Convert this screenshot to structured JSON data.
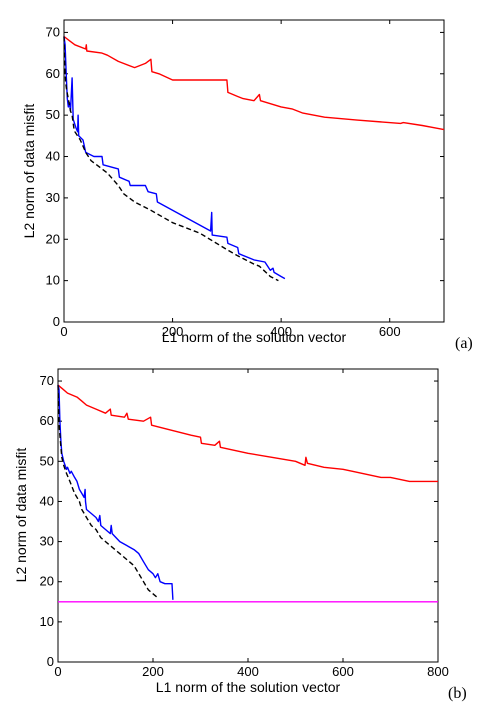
{
  "chart_data": [
    {
      "type": "line",
      "panel_label": "(a)",
      "xlabel": "L1 norm of the solution vector",
      "ylabel": "L2 norm of data misfit",
      "xlim": [
        0,
        700
      ],
      "ylim": [
        0,
        73
      ],
      "x_ticks": [
        0,
        200,
        400,
        600
      ],
      "y_ticks": [
        0,
        10,
        20,
        30,
        40,
        50,
        60,
        70
      ],
      "colors": {
        "red": "#ff0000",
        "blue": "#0000ff",
        "black": "#000000",
        "magenta": "#ff00ff"
      },
      "series": [
        {
          "color": "red",
          "style": "solid",
          "points": [
            [
              0,
              69
            ],
            [
              10,
              68
            ],
            [
              20,
              67
            ],
            [
              40,
              66
            ],
            [
              41,
              67
            ],
            [
              42,
              65.5
            ],
            [
              70,
              65
            ],
            [
              80,
              64.5
            ],
            [
              100,
              63
            ],
            [
              130,
              61.5
            ],
            [
              150,
              62.5
            ],
            [
              160,
              63.5
            ],
            [
              162,
              60.5
            ],
            [
              175,
              60
            ],
            [
              200,
              58.5
            ],
            [
              260,
              58.5
            ],
            [
              300,
              58.5
            ],
            [
              302,
              55.5
            ],
            [
              320,
              54.5
            ],
            [
              330,
              54
            ],
            [
              350,
              53.5
            ],
            [
              360,
              55
            ],
            [
              362,
              53.5
            ],
            [
              400,
              52
            ],
            [
              420,
              51.5
            ],
            [
              440,
              50.5
            ],
            [
              480,
              49.5
            ],
            [
              540,
              48.8
            ],
            [
              620,
              48
            ],
            [
              625,
              48.2
            ],
            [
              660,
              47.5
            ],
            [
              700,
              46.5
            ]
          ]
        },
        {
          "color": "blue",
          "style": "solid",
          "points": [
            [
              0,
              69
            ],
            [
              2,
              67
            ],
            [
              4,
              60
            ],
            [
              6,
              54
            ],
            [
              8,
              52
            ],
            [
              10,
              53
            ],
            [
              12,
              51
            ],
            [
              15,
              59
            ],
            [
              17,
              49
            ],
            [
              22,
              47
            ],
            [
              25,
              46
            ],
            [
              26,
              50
            ],
            [
              27,
              45
            ],
            [
              35,
              44
            ],
            [
              40,
              41
            ],
            [
              55,
              40
            ],
            [
              70,
              40
            ],
            [
              72,
              38
            ],
            [
              100,
              37
            ],
            [
              102,
              35
            ],
            [
              120,
              34
            ],
            [
              122,
              33
            ],
            [
              150,
              33
            ],
            [
              155,
              31.5
            ],
            [
              170,
              31
            ],
            [
              172,
              29
            ],
            [
              270,
              22
            ],
            [
              272,
              26.5
            ],
            [
              273,
              21
            ],
            [
              300,
              20.5
            ],
            [
              302,
              19
            ],
            [
              320,
              18
            ],
            [
              322,
              16.5
            ],
            [
              350,
              15
            ],
            [
              370,
              14.5
            ],
            [
              380,
              12.5
            ],
            [
              385,
              13
            ],
            [
              387,
              12
            ],
            [
              400,
              11
            ],
            [
              407,
              10.5
            ]
          ]
        },
        {
          "color": "black",
          "style": "dashed",
          "points": [
            [
              0,
              69
            ],
            [
              1,
              64
            ],
            [
              3,
              58
            ],
            [
              5,
              56
            ],
            [
              8,
              54
            ],
            [
              12,
              51
            ],
            [
              15,
              50
            ],
            [
              18,
              47
            ],
            [
              20,
              46
            ],
            [
              30,
              44
            ],
            [
              40,
              41
            ],
            [
              50,
              39
            ],
            [
              60,
              38
            ],
            [
              80,
              36
            ],
            [
              100,
              33
            ],
            [
              110,
              31
            ],
            [
              130,
              29
            ],
            [
              160,
              27
            ],
            [
              200,
              24
            ],
            [
              220,
              23
            ],
            [
              250,
              21.5
            ],
            [
              300,
              17.5
            ],
            [
              320,
              16
            ],
            [
              350,
              14
            ],
            [
              360,
              13.5
            ],
            [
              380,
              11
            ],
            [
              395,
              10
            ]
          ]
        }
      ]
    },
    {
      "type": "line",
      "panel_label": "(b)",
      "xlabel": "L1 norm of the solution vector",
      "ylabel": "L2 norm of data misfit",
      "xlim": [
        0,
        800
      ],
      "ylim": [
        0,
        73
      ],
      "x_ticks": [
        0,
        200,
        400,
        600,
        800
      ],
      "y_ticks": [
        0,
        10,
        20,
        30,
        40,
        50,
        60,
        70
      ],
      "series": [
        {
          "color": "red",
          "style": "solid",
          "points": [
            [
              0,
              69
            ],
            [
              10,
              68
            ],
            [
              20,
              67
            ],
            [
              40,
              66
            ],
            [
              50,
              65
            ],
            [
              60,
              64
            ],
            [
              80,
              63
            ],
            [
              100,
              62
            ],
            [
              110,
              63
            ],
            [
              112,
              61.5
            ],
            [
              140,
              61
            ],
            [
              145,
              62
            ],
            [
              148,
              60.5
            ],
            [
              180,
              60
            ],
            [
              195,
              61
            ],
            [
              197,
              59
            ],
            [
              230,
              58
            ],
            [
              280,
              56.5
            ],
            [
              300,
              56
            ],
            [
              302,
              54.5
            ],
            [
              330,
              54
            ],
            [
              340,
              55
            ],
            [
              342,
              53.5
            ],
            [
              400,
              52
            ],
            [
              450,
              51
            ],
            [
              500,
              50
            ],
            [
              520,
              49
            ],
            [
              522,
              51
            ],
            [
              525,
              49.5
            ],
            [
              560,
              48.5
            ],
            [
              600,
              48
            ],
            [
              620,
              47.5
            ],
            [
              680,
              46
            ],
            [
              700,
              46
            ],
            [
              740,
              45
            ],
            [
              780,
              45
            ],
            [
              800,
              45
            ]
          ]
        },
        {
          "color": "blue",
          "style": "solid",
          "points": [
            [
              0,
              69
            ],
            [
              2,
              68
            ],
            [
              4,
              60
            ],
            [
              6,
              55
            ],
            [
              8,
              52
            ],
            [
              12,
              50
            ],
            [
              18,
              48
            ],
            [
              20,
              48.5
            ],
            [
              25,
              47
            ],
            [
              28,
              47.5
            ],
            [
              35,
              46
            ],
            [
              40,
              45
            ],
            [
              45,
              43
            ],
            [
              50,
              42
            ],
            [
              55,
              41
            ],
            [
              57,
              43
            ],
            [
              58,
              40
            ],
            [
              60,
              38
            ],
            [
              70,
              37
            ],
            [
              80,
              36
            ],
            [
              85,
              35
            ],
            [
              88,
              36.5
            ],
            [
              90,
              34
            ],
            [
              100,
              33
            ],
            [
              110,
              32
            ],
            [
              112,
              34
            ],
            [
              114,
              32
            ],
            [
              130,
              30
            ],
            [
              160,
              28
            ],
            [
              170,
              27
            ],
            [
              180,
              25
            ],
            [
              185,
              24
            ],
            [
              190,
              23
            ],
            [
              200,
              22
            ],
            [
              205,
              21
            ],
            [
              210,
              22
            ],
            [
              215,
              20
            ],
            [
              225,
              19.5
            ],
            [
              240,
              19.5
            ],
            [
              242,
              15.5
            ]
          ]
        },
        {
          "color": "black",
          "style": "dashed",
          "points": [
            [
              0,
              69
            ],
            [
              1,
              64
            ],
            [
              3,
              58
            ],
            [
              5,
              55
            ],
            [
              8,
              51
            ],
            [
              12,
              49
            ],
            [
              18,
              47
            ],
            [
              25,
              45
            ],
            [
              35,
              42
            ],
            [
              45,
              40
            ],
            [
              50,
              38
            ],
            [
              60,
              36
            ],
            [
              70,
              34
            ],
            [
              80,
              33
            ],
            [
              90,
              31
            ],
            [
              100,
              30
            ],
            [
              120,
              28
            ],
            [
              140,
              26
            ],
            [
              160,
              24
            ],
            [
              170,
              22
            ],
            [
              180,
              20
            ],
            [
              190,
              18
            ],
            [
              200,
              17
            ],
            [
              210,
              16
            ]
          ]
        },
        {
          "color": "magenta",
          "style": "solid",
          "points": [
            [
              0,
              15
            ],
            [
              800,
              15
            ]
          ]
        }
      ]
    }
  ]
}
